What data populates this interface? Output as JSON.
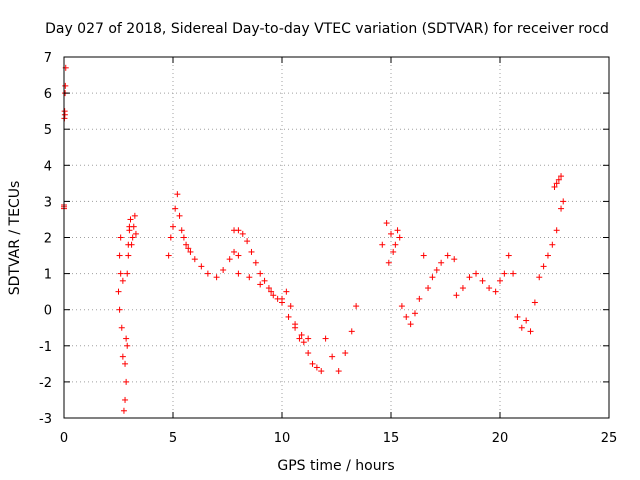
{
  "chart_data": {
    "type": "scatter",
    "title": "Day 027 of 2018, Sidereal Day-to-day VTEC variation (SDTVAR) for receiver rocd",
    "xlabel": "GPS time / hours",
    "ylabel": "SDTVAR / TECUs",
    "xlim": [
      0,
      25
    ],
    "ylim": [
      -3,
      7
    ],
    "xticks": [
      "0",
      "5",
      "10",
      "15",
      "20",
      "25"
    ],
    "yticks": [
      "-3",
      "-2",
      "-1",
      "0",
      "1",
      "2",
      "3",
      "4",
      "5",
      "6",
      "7"
    ],
    "grid": true,
    "marker": "plus",
    "series": [
      {
        "name": "SDTVAR",
        "color": "#ff0000",
        "x": [
          0.0,
          0.02,
          0.05,
          0.08,
          0.0,
          0.03,
          0.06,
          0.0,
          0.04,
          2.5,
          2.55,
          2.6,
          2.65,
          2.7,
          2.75,
          2.8,
          2.85,
          2.9,
          2.95,
          3.0,
          3.05,
          3.1,
          3.15,
          3.2,
          3.25,
          3.3,
          2.55,
          2.6,
          2.7,
          2.8,
          2.85,
          2.9,
          2.95,
          3.0,
          4.8,
          4.9,
          5.0,
          5.1,
          5.2,
          5.3,
          5.4,
          5.5,
          5.6,
          5.7,
          5.8,
          6.0,
          6.3,
          6.6,
          7.0,
          7.3,
          7.6,
          7.8,
          8.0,
          7.8,
          8.0,
          8.2,
          8.4,
          8.6,
          8.8,
          9.0,
          9.2,
          9.4,
          9.6,
          9.8,
          10.0,
          10.2,
          10.4,
          10.6,
          10.8,
          11.0,
          11.2,
          11.4,
          11.6,
          11.8,
          8.0,
          8.5,
          9.0,
          9.5,
          10.0,
          10.3,
          10.6,
          10.9,
          11.2,
          12.0,
          12.3,
          12.6,
          12.9,
          13.2,
          13.4,
          14.6,
          14.8,
          15.0,
          15.2,
          15.4,
          14.9,
          15.1,
          15.3,
          15.5,
          15.7,
          15.9,
          16.1,
          16.3,
          16.5,
          16.7,
          16.9,
          17.1,
          17.3,
          17.6,
          17.9,
          18.0,
          18.3,
          18.6,
          18.9,
          19.2,
          19.5,
          19.8,
          20.0,
          20.2,
          20.4,
          20.6,
          20.8,
          21.0,
          21.2,
          21.4,
          21.6,
          21.8,
          22.0,
          22.2,
          22.4,
          22.6,
          22.8,
          22.9,
          22.5,
          22.6,
          22.7,
          22.8
        ],
        "y": [
          2.9,
          5.3,
          6.0,
          6.7,
          2.8,
          5.5,
          6.2,
          2.85,
          5.4,
          0.5,
          1.5,
          2.0,
          -0.5,
          0.8,
          -2.8,
          -1.5,
          -0.8,
          1.0,
          1.8,
          2.2,
          2.5,
          1.8,
          2.0,
          2.3,
          2.6,
          2.1,
          0.0,
          1.0,
          -1.3,
          -2.5,
          -2.0,
          -1.0,
          1.5,
          2.3,
          1.5,
          2.0,
          2.3,
          2.8,
          3.2,
          2.6,
          2.2,
          2.0,
          1.8,
          1.7,
          1.6,
          1.4,
          1.2,
          1.0,
          0.9,
          1.1,
          1.4,
          1.6,
          1.5,
          2.2,
          2.2,
          2.1,
          1.9,
          1.6,
          1.3,
          1.0,
          0.8,
          0.6,
          0.4,
          0.3,
          0.2,
          0.5,
          0.1,
          -0.4,
          -0.8,
          -0.9,
          -1.2,
          -1.5,
          -1.6,
          -1.7,
          1.0,
          0.9,
          0.7,
          0.5,
          0.3,
          -0.2,
          -0.5,
          -0.7,
          -0.8,
          -0.8,
          -1.3,
          -1.7,
          -1.2,
          -0.6,
          0.1,
          1.8,
          2.4,
          2.1,
          1.8,
          2.0,
          1.3,
          1.6,
          2.2,
          0.1,
          -0.2,
          -0.4,
          -0.1,
          0.3,
          1.5,
          0.6,
          0.9,
          1.1,
          1.3,
          1.5,
          1.4,
          0.4,
          0.6,
          0.9,
          1.0,
          0.8,
          0.6,
          0.5,
          0.8,
          1.0,
          1.5,
          1.0,
          -0.2,
          -0.5,
          -0.3,
          -0.6,
          0.2,
          0.9,
          1.2,
          1.5,
          1.8,
          2.2,
          2.8,
          3.0,
          3.4,
          3.5,
          3.6,
          3.7
        ]
      }
    ]
  }
}
